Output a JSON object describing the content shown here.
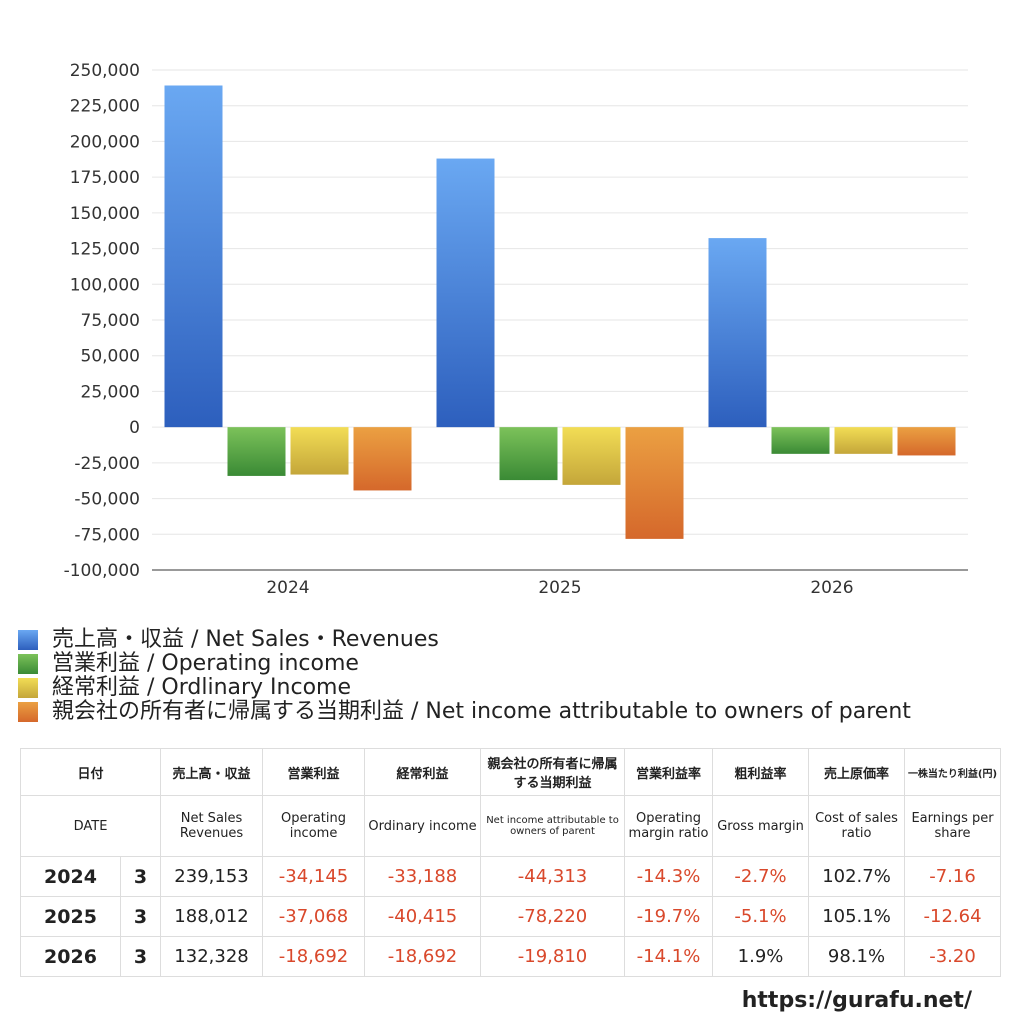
{
  "chart_data": {
    "type": "bar",
    "categories": [
      "2024",
      "2025",
      "2026"
    ],
    "series": [
      {
        "name": "売上高・収益 / Net Sales・Revenues",
        "color_top": "#6aa8f2",
        "color_bottom": "#2d5fbd",
        "values": [
          239153,
          188012,
          132328
        ]
      },
      {
        "name": "営業利益 / Operating income",
        "color_top": "#7cc25a",
        "color_bottom": "#3a8a35",
        "values": [
          -34145,
          -37068,
          -18692
        ]
      },
      {
        "name": "経常利益 / Ordlinary Income",
        "color_top": "#f2dd55",
        "color_bottom": "#c4a63a",
        "values": [
          -33188,
          -40415,
          -18692
        ]
      },
      {
        "name": "親会社の所有者に帰属する当期利益 / Net income attributable to owners of parent",
        "color_top": "#eba042",
        "color_bottom": "#d5682b",
        "values": [
          -44313,
          -78220,
          -19810
        ]
      }
    ],
    "ylim": [
      -100000,
      250000
    ],
    "yticks": [
      "250,000",
      "225,000",
      "200,000",
      "175,000",
      "150,000",
      "125,000",
      "100,000",
      "75,000",
      "50,000",
      "25,000",
      "0",
      "-25,000",
      "-50,000",
      "-75,000",
      "-100,000"
    ],
    "ytick_values": [
      250000,
      225000,
      200000,
      175000,
      150000,
      125000,
      100000,
      75000,
      50000,
      25000,
      0,
      -25000,
      -50000,
      -75000,
      -100000
    ],
    "grid": true,
    "legend_position": "bottom-left"
  },
  "table": {
    "header_jp": [
      "日付",
      "売上高・収益",
      "営業利益",
      "経常利益",
      "親会社の所有者に帰属する当期利益",
      "営業利益率",
      "粗利益率",
      "売上原価率",
      "一株当たり利益(円)"
    ],
    "header_en": [
      "DATE",
      "Net Sales Revenues",
      "Operating income",
      "Ordinary income",
      "Net income attributable to owners of parent",
      "Operating margin ratio",
      "Gross margin",
      "Cost of sales ratio",
      "Earnings per share"
    ],
    "rows": [
      {
        "year": "2024",
        "month": "3",
        "cells": [
          "239,153",
          "-34,145",
          "-33,188",
          "-44,313",
          "-14.3%",
          "-2.7%",
          "102.7%",
          "-7.16"
        ]
      },
      {
        "year": "2025",
        "month": "3",
        "cells": [
          "188,012",
          "-37,068",
          "-40,415",
          "-78,220",
          "-19.7%",
          "-5.1%",
          "105.1%",
          "-12.64"
        ]
      },
      {
        "year": "2026",
        "month": "3",
        "cells": [
          "132,328",
          "-18,692",
          "-18,692",
          "-19,810",
          "-14.1%",
          "1.9%",
          "98.1%",
          "-3.20"
        ]
      }
    ]
  },
  "footer": {
    "site": "https://gurafu.net/"
  }
}
